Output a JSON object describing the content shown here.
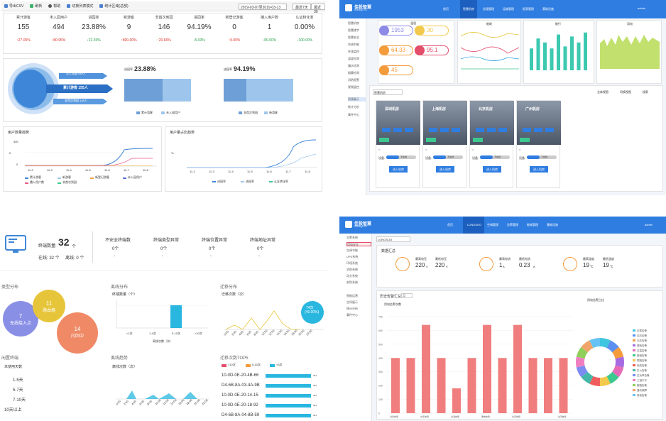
{
  "q1": {
    "toolbar": [
      "导出CSV",
      "刷新",
      "帮助",
      "切换列表模式",
      "统计区域(总部)"
    ],
    "date_range": "2019-03-07至2019-03-13",
    "btn_7days": "最近7天",
    "btn_30days": "最近30",
    "stats": [
      {
        "label": "累计游客",
        "value": "155",
        "change": "27.05%",
        "dir": "up"
      },
      {
        "label": "未入园用户",
        "value": "494",
        "change": "80.95%",
        "dir": "up"
      },
      {
        "label": "进园率",
        "value": "23.88%",
        "change": "22.69%",
        "dir": "down"
      },
      {
        "label": "新游客",
        "value": "9",
        "change": "800.00%",
        "dir": "up"
      },
      {
        "label": "非首次到园",
        "value": "146",
        "change": "20.66%",
        "dir": "up"
      },
      {
        "label": "进园率",
        "value": "94.19%",
        "change": "5.03%",
        "dir": "down"
      },
      {
        "label": "新登记游客",
        "value": "0",
        "change": "0.00%",
        "dir": "up"
      },
      {
        "label": "播入用户数",
        "value": "1",
        "change": "80.00%",
        "dir": "down"
      },
      {
        "label": "认证转化率",
        "value": "0.00%",
        "change": "100.00%",
        "dir": "down"
      }
    ],
    "funnel": [
      {
        "label": "总入流量 649人"
      },
      {
        "label": "累计游客 155人"
      },
      {
        "label": "非首次到园 146人"
      }
    ],
    "rate1": {
      "label": "进园率",
      "value": "23.88%",
      "legend": [
        "累计游客",
        "未入园用户"
      ]
    },
    "rate2": {
      "label": "进园率",
      "value": "94.19%",
      "legend": [
        "非首次到园",
        "新游客"
      ]
    },
    "trend1": {
      "title": "用户数量趋势",
      "y_ticks": [
        "400",
        "0"
      ],
      "y_mid": "K",
      "x_ticks": [
        "11-2",
        "11-3",
        "11-4",
        "11-5",
        "11-6",
        "11-7",
        "11-8"
      ],
      "legend": [
        "累计游客",
        "新游客",
        "新登记游客",
        "未入园用户",
        "播入用户数",
        "非首次到园"
      ]
    },
    "trend2": {
      "title": "用户量占比趋势",
      "y_mid": "%",
      "x_ticks": [
        "11-2",
        "11-3",
        "11-4",
        "11-5",
        "11-6",
        "11-7",
        "11-8"
      ],
      "legend": [
        "进园率",
        "进园率",
        "认证转化率"
      ]
    },
    "colors": {
      "accent": "#3e86d8",
      "light": "#9ec6ec",
      "line2": "#f08b8b"
    }
  },
  "q2": {
    "brand": "佳投智慧",
    "brand_sub": "Sundigi IOT",
    "nav": [
      "首页",
      "智慧机房",
      "告理管理",
      "运维管理",
      "报表管理",
      "基础设施"
    ],
    "user": "admin",
    "side": [
      "智慧机房",
      "智慧楼宇",
      "智慧安全",
      "空调节能",
      "环境监控",
      "温度检测",
      "漏水检测",
      "烟雾检测",
      "消防报警",
      "视频监控"
    ],
    "side2": [
      "资源展示",
      "统计分析",
      "事件中心"
    ],
    "gauge_values": [
      "1953",
      "30",
      "64.33",
      "95.1",
      "45"
    ],
    "chart_titles": [
      "温湿",
      "能耗",
      "能行",
      "用电"
    ],
    "dropdown": "智慧机房",
    "tools": [
      "全体视图",
      "切换视图",
      "搜索"
    ],
    "rooms": [
      {
        "name": "深圳机房",
        "lbl": "不在线",
        "btn": "进入机房"
      },
      {
        "name": "上海机房",
        "lbl": "不在线",
        "btn": "进入机房"
      },
      {
        "name": "北京机房",
        "lbl": "不在线",
        "btn": "进入机房"
      },
      {
        "name": "广州机房",
        "lbl": "不在线",
        "btn": "进入机房"
      }
    ],
    "room_field": "设备: ",
    "room_label": "不在线",
    "bars_green": [
      0.55,
      0.8,
      0.7,
      0.55,
      0.9,
      0.6,
      0.85,
      0.7,
      0.95
    ]
  },
  "q3": {
    "total_label": "终端数量:",
    "total_value": "32",
    "total_unit": "个",
    "online": "在线: 32 个",
    "offline": "离线: 0 个",
    "cols": [
      {
        "label": "不安全终端数",
        "value": "0个"
      },
      {
        "label": "终端类型异常",
        "value": "0个"
      },
      {
        "label": "终端位置异常",
        "value": "0个"
      },
      {
        "label": "终端地址异常",
        "value": "0个"
      }
    ],
    "col_dash": "-",
    "type_title": "类型分布",
    "bubbles": [
      {
        "num": "7",
        "label": "无线接入点",
        "color": "#8a8fe6"
      },
      {
        "num": "11",
        "label": "路由器",
        "color": "#e6c53a"
      },
      {
        "num": "14",
        "label": "闪回中",
        "color": "#f08a66"
      }
    ],
    "offline_title": "离线分布",
    "offline_y": "终端数量（个）",
    "offline_x": [
      "<1次",
      "1-4次",
      "5-10次",
      ">10次"
    ],
    "offline_xl": "离线次数（次）",
    "migrate_title": "迁移分布",
    "migrate_y": "迁移次数（次）",
    "migrate_badge": "74次",
    "migrate_badge2": "(40.00%)",
    "idle_title": "闲置终端",
    "idle_sub": "未使用天数",
    "idle_rows": [
      "1-5天",
      "5-7天",
      "7-10天",
      "10天以上"
    ],
    "offtrend_title": "离线趋势",
    "offtrend_y": "离线次数（次）",
    "top5_title": "迁移次数TOP5",
    "top5_legend": [
      "<10次",
      "5-10次",
      ">5次"
    ],
    "top5": [
      "10-0D-0E-20-4B-66",
      "D4-6B-8A-03-4A-9B",
      "10-0D-0E-20-14-15",
      "10-0D-0E-20-18-92",
      "D4-6B-8A-04-8B-59"
    ],
    "top5_vals": [
      "321",
      "321",
      "321",
      "321",
      "321"
    ],
    "time_ticks": [
      "0:00",
      "2:00",
      "4:00",
      "6:00",
      "8:00",
      "10:00",
      "12:00",
      "14:00",
      "16:00",
      "18:00",
      "20:00",
      "22:00"
    ],
    "colors": {
      "blue": "#29b7e0",
      "pink": "#e34e6b"
    }
  },
  "q4": {
    "brand": "佳投智慧",
    "brand_sub": "Sundigi IOT",
    "nav": [
      "首页",
      "LONGSOO",
      "空调管理",
      "告警管理",
      "能耗管理",
      "基础设施"
    ],
    "user": "admin",
    "select": "LONGSOO",
    "side_group1": [
      "告警系统",
      "用电安全",
      "空调节能",
      "UPS系统",
      "环境系统",
      "消防系统",
      "动力系统",
      "安防系统"
    ],
    "side_group2": [
      "智能运营",
      "空间展示",
      "统计分析",
      "事件中心"
    ],
    "summary_title": "数据汇总",
    "metrics": [
      {
        "t1": "最高电压",
        "v1": "220",
        "u1": "V",
        "t2": "最低电压",
        "v2": "220",
        "u2": "V"
      },
      {
        "t1": "最高电流",
        "v1": "1",
        "u1": "A",
        "t2": "最低电流",
        "v2": "0.23",
        "u2": "A"
      },
      {
        "t1": "最高温度",
        "v1": "19",
        "u1": "℃",
        "t2": "最低温度",
        "v2": "19",
        "u2": "℃"
      }
    ],
    "hist_title": "历史告警汇总",
    "hist_select": "月",
    "bar_title": "用电告警次数",
    "donut_title": "用电告警占比",
    "bar_y_ticks": [
      "700",
      "600",
      "500",
      "400",
      "300",
      "200",
      "100",
      "0"
    ],
    "bars": [
      400,
      400,
      640,
      400,
      180,
      400,
      640,
      400,
      640,
      400,
      400,
      400
    ],
    "bar_x": [
      "过载告警",
      "",
      "欠压告警",
      "",
      "过温告警",
      "",
      "漏电告警",
      "",
      "欠压告警",
      "",
      "",
      "过压告警"
    ],
    "donut_legend": [
      "过载告警",
      "过压告警",
      "欠压告警",
      "漏电告警",
      "过温告警",
      "缺相告警",
      "短路告警",
      "电弧告警",
      "打火告警",
      "过功率告警",
      "三相不平",
      "断路告警",
      "通讯故障",
      "其他告警"
    ],
    "donut_colors": [
      "#3ec6e0",
      "#5b8ff0",
      "#f49b3c",
      "#a66be3",
      "#e56bb8",
      "#3cc98f",
      "#f2c94c",
      "#f05c5c",
      "#45b7a8",
      "#7c8bf2",
      "#ef7ec1",
      "#90d05a",
      "#f0a46b",
      "#66c2f4"
    ],
    "bar_color": "#f07e7e"
  }
}
